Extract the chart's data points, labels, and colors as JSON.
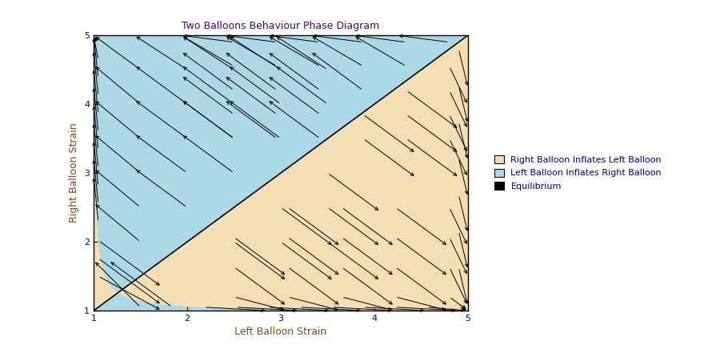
{
  "title": "Two Balloons Behaviour Phase Diagram",
  "xlabel": "Left Balloon Strain",
  "ylabel": "Right Balloon Strain",
  "xlim": [
    1,
    5
  ],
  "ylim": [
    1,
    5
  ],
  "xticks": [
    1,
    2,
    3,
    4,
    5
  ],
  "yticks": [
    1,
    2,
    3,
    4,
    5
  ],
  "color_right_inflates": "#F5DEB3",
  "color_left_inflates": "#ADD8E6",
  "legend_labels": [
    "Right Balloon Inflates Left Balloon",
    "Left Balloon Inflates Right Balloon",
    "Equilibrium"
  ],
  "title_color": "#4B0082",
  "axis_label_color": "#8B4513",
  "tick_color": "#00008B",
  "legend_text_color": "#00008B",
  "figsize": [
    9.0,
    4.41
  ],
  "dpi": 100
}
